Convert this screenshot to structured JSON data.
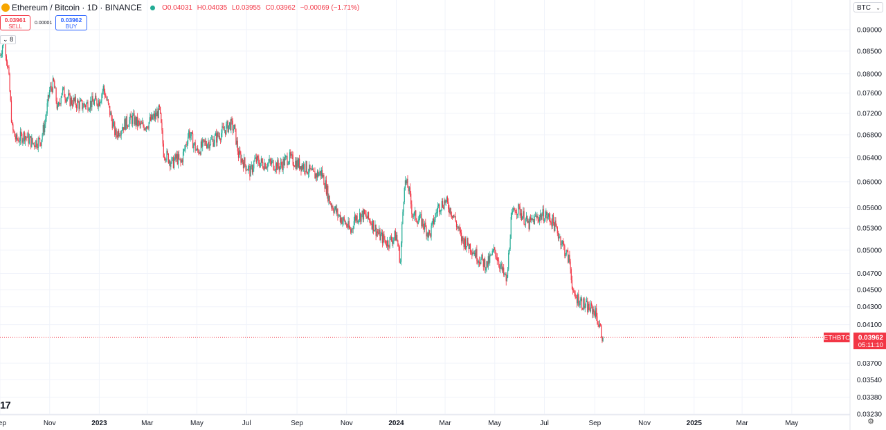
{
  "header": {
    "symbol_title": "Ethereum / Bitcoin · 1D · BINANCE",
    "ohlc": {
      "open": "O0.04031",
      "high": "H0.04035",
      "low": "L0.03955",
      "close": "C0.03962",
      "change": "−0.00069 (−1.71%)"
    }
  },
  "trade": {
    "sell_price": "0.03961",
    "sell_label": "SELL",
    "spread": "0.00001",
    "buy_price": "0.03962",
    "buy_label": "BUY"
  },
  "indicators_toggle": "8",
  "currency_select": "BTC",
  "last_price": {
    "symbol": "ETHBTC",
    "price": "0.03962",
    "countdown": "05:11:10"
  },
  "colors": {
    "up": "#22ab94",
    "down": "#f23645",
    "accent": "#2962ff",
    "grid": "#f0f3fa",
    "text": "#131722"
  },
  "icons": [
    "dropdown-chevron-icon",
    "tradingview-logo-icon",
    "settings-gear-icon",
    "live-status-dot-icon"
  ],
  "chart_data": {
    "type": "candlestick",
    "title": "Ethereum / Bitcoin · 1D · BINANCE",
    "scale": "log",
    "ylim": [
      0.0323,
      0.0925
    ],
    "xlim": [
      "2022-09-01",
      "2025-06-05"
    ],
    "y_ticks": [
      "0.09000",
      "0.08500",
      "0.08000",
      "0.07600",
      "0.07200",
      "0.06800",
      "0.06400",
      "0.06000",
      "0.05600",
      "0.05300",
      "0.05000",
      "0.04700",
      "0.04500",
      "0.04300",
      "0.04100",
      "0.03700",
      "0.03540",
      "0.03380",
      "0.03230"
    ],
    "x_ticks": [
      {
        "date": "2022-09-01",
        "label": "Sep",
        "bold": false
      },
      {
        "date": "2022-11-01",
        "label": "Nov",
        "bold": false
      },
      {
        "date": "2023-01-01",
        "label": "2023",
        "bold": true
      },
      {
        "date": "2023-03-01",
        "label": "Mar",
        "bold": false
      },
      {
        "date": "2023-05-01",
        "label": "May",
        "bold": false
      },
      {
        "date": "2023-07-01",
        "label": "Jul",
        "bold": false
      },
      {
        "date": "2023-09-01",
        "label": "Sep",
        "bold": false
      },
      {
        "date": "2023-11-01",
        "label": "Nov",
        "bold": false
      },
      {
        "date": "2024-01-01",
        "label": "2024",
        "bold": true
      },
      {
        "date": "2024-03-01",
        "label": "Mar",
        "bold": false
      },
      {
        "date": "2024-05-01",
        "label": "May",
        "bold": false
      },
      {
        "date": "2024-07-01",
        "label": "Jul",
        "bold": false
      },
      {
        "date": "2024-09-01",
        "label": "Sep",
        "bold": false
      },
      {
        "date": "2024-11-01",
        "label": "Nov",
        "bold": false
      },
      {
        "date": "2025-01-01",
        "label": "2025",
        "bold": true
      },
      {
        "date": "2025-03-01",
        "label": "Mar",
        "bold": false
      },
      {
        "date": "2025-05-01",
        "label": "May",
        "bold": false
      }
    ],
    "closes_by_date": [
      [
        "2022-09-01",
        0.084
      ],
      [
        "2022-09-06",
        0.088
      ],
      [
        "2022-09-11",
        0.081
      ],
      [
        "2022-09-16",
        0.069
      ],
      [
        "2022-09-21",
        0.067
      ],
      [
        "2022-10-01",
        0.068
      ],
      [
        "2022-10-11",
        0.0665
      ],
      [
        "2022-10-21",
        0.067
      ],
      [
        "2022-10-26",
        0.07
      ],
      [
        "2022-11-01",
        0.0765
      ],
      [
        "2022-11-06",
        0.078
      ],
      [
        "2022-11-11",
        0.0725
      ],
      [
        "2022-11-16",
        0.0765
      ],
      [
        "2022-11-26",
        0.0745
      ],
      [
        "2022-12-11",
        0.0735
      ],
      [
        "2022-12-21",
        0.074
      ],
      [
        "2023-01-01",
        0.0745
      ],
      [
        "2023-01-06",
        0.077
      ],
      [
        "2023-01-11",
        0.074
      ],
      [
        "2023-01-21",
        0.068
      ],
      [
        "2023-02-01",
        0.07
      ],
      [
        "2023-02-11",
        0.071
      ],
      [
        "2023-02-21",
        0.0695
      ],
      [
        "2023-03-01",
        0.07
      ],
      [
        "2023-03-11",
        0.0715
      ],
      [
        "2023-03-16",
        0.0725
      ],
      [
        "2023-03-21",
        0.065
      ],
      [
        "2023-04-01",
        0.063
      ],
      [
        "2023-04-06",
        0.064
      ],
      [
        "2023-04-11",
        0.063
      ],
      [
        "2023-04-16",
        0.0655
      ],
      [
        "2023-04-21",
        0.0685
      ],
      [
        "2023-05-01",
        0.065
      ],
      [
        "2023-05-11",
        0.0665
      ],
      [
        "2023-05-21",
        0.067
      ],
      [
        "2023-06-01",
        0.0685
      ],
      [
        "2023-06-11",
        0.07
      ],
      [
        "2023-06-16",
        0.069
      ],
      [
        "2023-06-21",
        0.0645
      ],
      [
        "2023-07-01",
        0.0625
      ],
      [
        "2023-07-06",
        0.0615
      ],
      [
        "2023-07-11",
        0.0635
      ],
      [
        "2023-07-21",
        0.063
      ],
      [
        "2023-08-01",
        0.063
      ],
      [
        "2023-08-11",
        0.0625
      ],
      [
        "2023-08-21",
        0.064
      ],
      [
        "2023-09-01",
        0.063
      ],
      [
        "2023-09-11",
        0.0625
      ],
      [
        "2023-09-21",
        0.061
      ],
      [
        "2023-10-01",
        0.0615
      ],
      [
        "2023-10-06",
        0.0595
      ],
      [
        "2023-10-11",
        0.057
      ],
      [
        "2023-10-21",
        0.055
      ],
      [
        "2023-11-01",
        0.0535
      ],
      [
        "2023-11-06",
        0.0525
      ],
      [
        "2023-11-11",
        0.0545
      ],
      [
        "2023-11-21",
        0.055
      ],
      [
        "2023-12-01",
        0.054
      ],
      [
        "2023-12-11",
        0.052
      ],
      [
        "2023-12-21",
        0.051
      ],
      [
        "2024-01-01",
        0.052
      ],
      [
        "2024-01-06",
        0.0485
      ],
      [
        "2024-01-11",
        0.06
      ],
      [
        "2024-01-16",
        0.059
      ],
      [
        "2024-01-21",
        0.055
      ],
      [
        "2024-02-01",
        0.054
      ],
      [
        "2024-02-11",
        0.052
      ],
      [
        "2024-02-21",
        0.056
      ],
      [
        "2024-03-01",
        0.057
      ],
      [
        "2024-03-11",
        0.055
      ],
      [
        "2024-03-21",
        0.0515
      ],
      [
        "2024-04-01",
        0.0505
      ],
      [
        "2024-04-11",
        0.049
      ],
      [
        "2024-04-21",
        0.048
      ],
      [
        "2024-05-01",
        0.05
      ],
      [
        "2024-05-06",
        0.0485
      ],
      [
        "2024-05-11",
        0.047
      ],
      [
        "2024-05-16",
        0.046
      ],
      [
        "2024-05-21",
        0.054
      ],
      [
        "2024-05-26",
        0.056
      ],
      [
        "2024-06-01",
        0.0555
      ],
      [
        "2024-06-11",
        0.0535
      ],
      [
        "2024-06-21",
        0.0545
      ],
      [
        "2024-07-01",
        0.055
      ],
      [
        "2024-07-11",
        0.054
      ],
      [
        "2024-07-21",
        0.0515
      ],
      [
        "2024-07-26",
        0.05
      ],
      [
        "2024-08-01",
        0.0485
      ],
      [
        "2024-08-06",
        0.044
      ],
      [
        "2024-08-11",
        0.044
      ],
      [
        "2024-08-21",
        0.043
      ],
      [
        "2024-09-01",
        0.0425
      ],
      [
        "2024-09-06",
        0.041
      ],
      [
        "2024-09-11",
        0.03962
      ]
    ]
  }
}
